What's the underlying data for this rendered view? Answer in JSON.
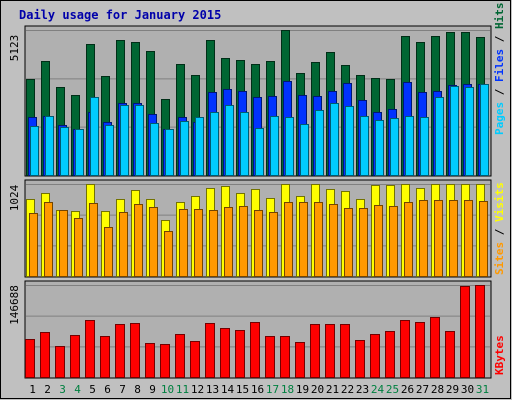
{
  "chart_data": {
    "type": "bar",
    "title": "Daily usage for January 2015",
    "categories": [
      "1",
      "2",
      "3",
      "4",
      "5",
      "6",
      "7",
      "8",
      "9",
      "10",
      "11",
      "12",
      "13",
      "14",
      "15",
      "16",
      "17",
      "18",
      "19",
      "20",
      "21",
      "22",
      "23",
      "24",
      "25",
      "26",
      "27",
      "28",
      "29",
      "30",
      "31"
    ],
    "weekend_days": [
      "3",
      "4",
      "10",
      "11",
      "17",
      "18",
      "24",
      "25",
      "31"
    ],
    "grid": true,
    "panels": [
      {
        "name": "hits-files-pages",
        "y_tick_label": "5123",
        "ymax": 5123,
        "ylim": [
          0,
          5123
        ],
        "series": [
          {
            "name": "Hits",
            "color": "#006633",
            "values": [
              3406,
              4012,
              3117,
              2834,
              4621,
              3513,
              4765,
              4694,
              4378,
              2683,
              3937,
              3516,
              4765,
              4128,
              4056,
              3908,
              4018,
              5123,
              3618,
              3997,
              4355,
              3897,
              3536,
              3436,
              3407,
              4911,
              4716,
              4899,
              5047,
              5057,
              4862
            ]
          },
          {
            "name": "Files",
            "color": "#0033ff",
            "values": [
              2033,
              2090,
              1768,
              1626,
              2233,
              1874,
              2542,
              2529,
              2143,
              1614,
              2064,
              1876,
              2937,
              3045,
              2975,
              2763,
              2781,
              3338,
              2810,
              2787,
              2960,
              3247,
              2655,
              2233,
              2318,
              3293,
              2933,
              2971,
              3164,
              3201,
              3219
            ]
          },
          {
            "name": "Pages",
            "color": "#00ccff",
            "values": [
              1736,
              2069,
              1700,
              1635,
              2757,
              1754,
              2461,
              2478,
              1845,
              1619,
              1915,
              2059,
              2219,
              2486,
              2238,
              1676,
              2083,
              2052,
              1804,
              2291,
              2541,
              2440,
              2093,
              1929,
              2010,
              2101,
              2061,
              2754,
              3132,
              3100,
              3209
            ]
          }
        ]
      },
      {
        "name": "visits-sites",
        "y_tick_label": "1024",
        "ymax": 1024,
        "ylim": [
          0,
          1024
        ],
        "series": [
          {
            "name": "Visits",
            "color": "#ffff00",
            "values": [
              858,
              922,
              736,
              719,
              1024,
              729,
              856,
              960,
              855,
              618,
              828,
              885,
              975,
              1001,
              927,
              965,
              872,
              1024,
              889,
              1024,
              970,
              949,
              862,
              1018,
              1018,
              1020,
              984,
              1024,
              1024,
              1019,
              1024
            ]
          },
          {
            "name": "Sites",
            "color": "#ff9900",
            "values": [
              700,
              829,
              732,
              651,
              817,
              543,
              716,
              802,
              763,
              504,
              741,
              744,
              732,
              766,
              781,
              736,
              716,
              819,
              822,
              825,
              805,
              762,
              762,
              793,
              776,
              823,
              850,
              848,
              851,
              843,
              833
            ]
          }
        ]
      },
      {
        "name": "kbytes",
        "y_tick_label": "146688",
        "ymax": 146688,
        "ylim": [
          0,
          146688
        ],
        "series": [
          {
            "name": "KBytes",
            "color": "#ff0000",
            "values": [
              60124,
              71001,
              48839,
              66853,
              90426,
              65728,
              84144,
              86532,
              54026,
              53262,
              67956,
              58107,
              86012,
              77963,
              75069,
              87924,
              64830,
              65208,
              55783,
              83908,
              83722,
              83847,
              59632,
              68905,
              72950,
              91029,
              86929,
              96015,
              73850,
              144977,
              146688
            ]
          }
        ]
      }
    ]
  }
}
